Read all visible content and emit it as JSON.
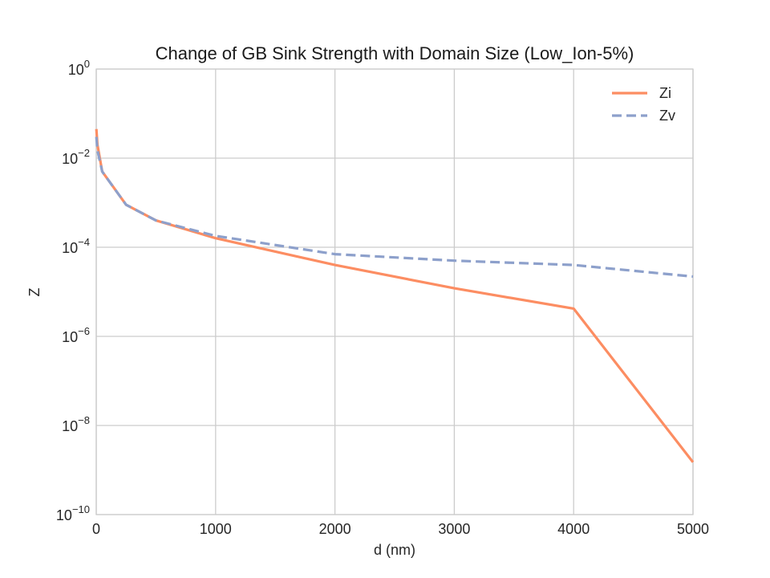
{
  "chart_data": {
    "type": "line",
    "title": "Change of GB Sink Strength with Domain Size (Low_Ion-5%)",
    "xlabel": "d (nm)",
    "ylabel": "Z",
    "xlim": [
      0,
      5000
    ],
    "ylim": [
      1e-10,
      1
    ],
    "yscale": "log",
    "grid": true,
    "legend_position": "top-right",
    "x_ticks": [
      {
        "value": 0,
        "label": "0"
      },
      {
        "value": 1000,
        "label": "1000"
      },
      {
        "value": 2000,
        "label": "2000"
      },
      {
        "value": 3000,
        "label": "3000"
      },
      {
        "value": 4000,
        "label": "4000"
      },
      {
        "value": 5000,
        "label": "5000"
      }
    ],
    "y_ticks": [
      {
        "value": 1e-10,
        "base": "10",
        "exp": "−10"
      },
      {
        "value": 1e-08,
        "base": "10",
        "exp": "−8"
      },
      {
        "value": 1e-06,
        "base": "10",
        "exp": "−6"
      },
      {
        "value": 0.0001,
        "base": "10",
        "exp": "−4"
      },
      {
        "value": 0.01,
        "base": "10",
        "exp": "−2"
      },
      {
        "value": 1,
        "base": "10",
        "exp": "0"
      }
    ],
    "series": [
      {
        "name": "Zi",
        "color": "#fc8d62",
        "style": "solid",
        "x": [
          1,
          10,
          50,
          250,
          500,
          1000,
          2000,
          3000,
          4000,
          5000
        ],
        "y": [
          0.045,
          0.02,
          0.005,
          0.0009,
          0.0004,
          0.00016,
          4e-05,
          1.2e-05,
          4.2e-06,
          1.5e-09
        ]
      },
      {
        "name": "Zv",
        "color": "#8da0cb",
        "style": "dashed",
        "x": [
          1,
          10,
          50,
          250,
          500,
          1000,
          2000,
          3000,
          4000,
          5000
        ],
        "y": [
          0.03,
          0.015,
          0.005,
          0.0009,
          0.0004,
          0.00018,
          7e-05,
          5e-05,
          4e-05,
          2.2e-05
        ]
      }
    ]
  }
}
